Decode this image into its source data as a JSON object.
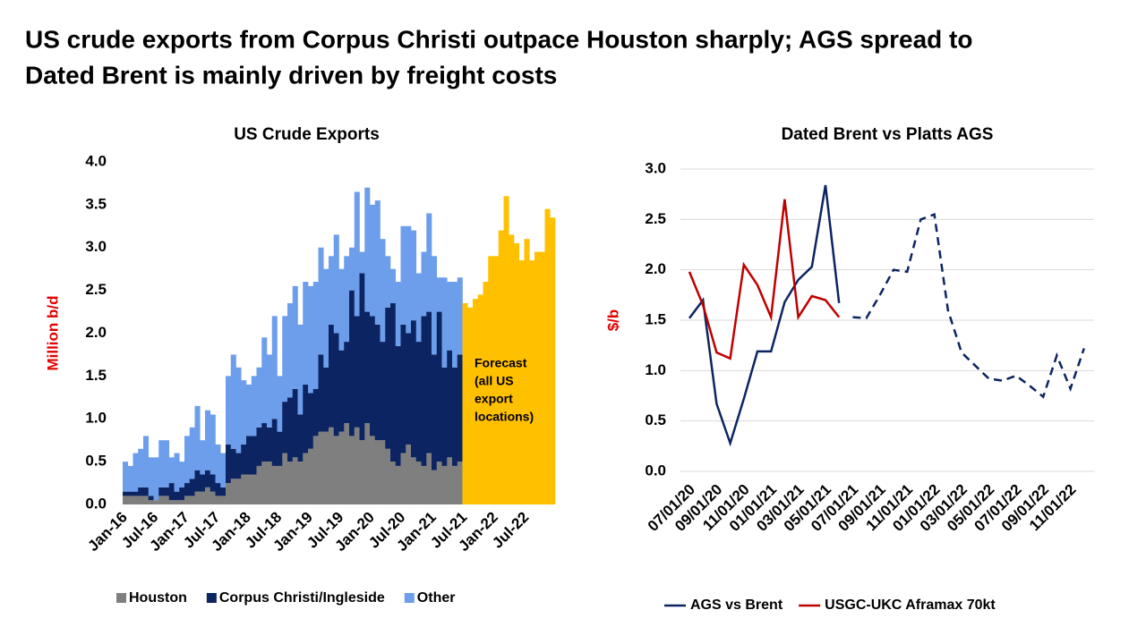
{
  "title_lines": [
    "US crude exports from Corpus Christi outpace Houston sharply; AGS spread to",
    "Dated Brent is mainly driven by freight costs"
  ],
  "chart_data": [
    {
      "type": "bar",
      "stacked": true,
      "title": "US Crude  Exports",
      "y_label": "Million b/d",
      "grid": false,
      "ylim": [
        0,
        4
      ],
      "yticks": [
        {
          "value": 0,
          "label": "0.0"
        },
        {
          "value": 0.5,
          "label": "0.5"
        },
        {
          "value": 1,
          "label": "1.0"
        },
        {
          "value": 1.5,
          "label": "1.5"
        },
        {
          "value": 2,
          "label": "2.0"
        },
        {
          "value": 2.5,
          "label": "2.5"
        },
        {
          "value": 3,
          "label": "3.0"
        },
        {
          "value": 3.5,
          "label": "3.5"
        },
        {
          "value": 4,
          "label": "4.0"
        }
      ],
      "categories": [
        "Jan-16",
        null,
        null,
        null,
        null,
        null,
        "Jul-16",
        null,
        null,
        null,
        null,
        null,
        "Jan-17",
        null,
        null,
        null,
        null,
        null,
        "Jul-17",
        null,
        null,
        null,
        null,
        null,
        "Jan-18",
        null,
        null,
        null,
        null,
        null,
        "Jul-18",
        null,
        null,
        null,
        null,
        null,
        "Jan-19",
        null,
        null,
        null,
        null,
        null,
        "Jul-19",
        null,
        null,
        null,
        null,
        null,
        "Jan-20",
        null,
        null,
        null,
        null,
        null,
        "Jul-20",
        null,
        null,
        null,
        null,
        null,
        "Jan-21",
        null,
        null,
        null,
        null,
        null,
        "Jul-21",
        null,
        null,
        null,
        null,
        null,
        "Jan-22",
        null,
        null,
        null,
        null,
        null,
        "Jul-22",
        null,
        null,
        null,
        null,
        null
      ],
      "series": [
        {
          "name": "Houston",
          "color": "#7f7f7f",
          "values": [
            0.1,
            0.1,
            0.1,
            0.1,
            0.1,
            0.05,
            0.05,
            0.1,
            0.1,
            0.05,
            0.05,
            0.05,
            0.1,
            0.1,
            0.15,
            0.15,
            0.2,
            0.15,
            0.1,
            0.1,
            0.25,
            0.3,
            0.3,
            0.35,
            0.35,
            0.35,
            0.45,
            0.5,
            0.5,
            0.45,
            0.45,
            0.6,
            0.5,
            0.55,
            0.5,
            0.6,
            0.65,
            0.8,
            0.85,
            0.85,
            0.9,
            0.8,
            0.85,
            0.95,
            0.8,
            0.9,
            0.75,
            0.95,
            0.8,
            0.75,
            0.75,
            0.65,
            0.5,
            0.45,
            0.6,
            0.7,
            0.55,
            0.5,
            0.45,
            0.6,
            0.4,
            0.5,
            0.45,
            0.55,
            0.45,
            0.5,
            null,
            null,
            null,
            null,
            null,
            null,
            null,
            null,
            null,
            null,
            null,
            null,
            null,
            null,
            null,
            null,
            null,
            null
          ]
        },
        {
          "name": "Corpus Christi/Ingleside",
          "color": "#0c2461",
          "values": [
            0.05,
            0.05,
            0.05,
            0.1,
            0.1,
            0.05,
            0,
            0.1,
            0.1,
            0.2,
            0.1,
            0.15,
            0.15,
            0.2,
            0.25,
            0.2,
            0.2,
            0.2,
            0.15,
            0.1,
            0.45,
            0.35,
            0.3,
            0.35,
            0.45,
            0.45,
            0.45,
            0.45,
            0.4,
            0.55,
            0.4,
            0.6,
            0.75,
            0.8,
            0.55,
            0.8,
            0.65,
            0.55,
            0.9,
            0.75,
            1.2,
            1.2,
            0.95,
            0.95,
            1.7,
            1.3,
            1.95,
            1.3,
            1.4,
            1.35,
            1.15,
            1.65,
            1.85,
            1.4,
            1.5,
            1.3,
            1.6,
            1.4,
            1.75,
            1.65,
            1.35,
            1.75,
            1.15,
            1.25,
            1.15,
            1.25,
            null,
            null,
            null,
            null,
            null,
            null,
            null,
            null,
            null,
            null,
            null,
            null,
            null,
            null,
            null,
            null,
            null,
            null
          ]
        },
        {
          "name": "Other",
          "color": "#6d9eeb",
          "values": [
            0.35,
            0.3,
            0.45,
            0.45,
            0.6,
            0.45,
            0.5,
            0.55,
            0.55,
            0.3,
            0.45,
            0.3,
            0.55,
            0.6,
            0.75,
            0.4,
            0.7,
            0.7,
            0.45,
            0.4,
            0.8,
            1.1,
            1.0,
            0.75,
            0.6,
            0.7,
            0.7,
            1.0,
            0.85,
            1.2,
            0.65,
            1.0,
            1.1,
            1.2,
            1.05,
            1.2,
            1.25,
            1.25,
            1.25,
            1.15,
            0.8,
            1.15,
            0.95,
            1.0,
            0.5,
            1.45,
            0.25,
            1.45,
            1.3,
            1.45,
            1.2,
            0.6,
            0.4,
            0.75,
            1.15,
            1.25,
            1.05,
            0.8,
            0.75,
            1.15,
            1.15,
            0.4,
            1.05,
            0.8,
            1.0,
            0.9,
            null,
            null,
            null,
            null,
            null,
            null,
            null,
            null,
            null,
            null,
            null,
            null,
            null,
            null,
            null,
            null,
            null,
            null
          ]
        }
      ],
      "forecast": {
        "color": "#ffc000",
        "values": [
          null,
          null,
          null,
          null,
          null,
          null,
          null,
          null,
          null,
          null,
          null,
          null,
          null,
          null,
          null,
          null,
          null,
          null,
          null,
          null,
          null,
          null,
          null,
          null,
          null,
          null,
          null,
          null,
          null,
          null,
          null,
          null,
          null,
          null,
          null,
          null,
          null,
          null,
          null,
          null,
          null,
          null,
          null,
          null,
          null,
          null,
          null,
          null,
          null,
          null,
          null,
          null,
          null,
          null,
          null,
          null,
          null,
          null,
          null,
          null,
          null,
          null,
          null,
          null,
          null,
          null,
          2.35,
          2.3,
          2.4,
          2.45,
          2.6,
          2.9,
          2.9,
          3.2,
          3.6,
          3.15,
          3.05,
          2.85,
          3.1,
          2.85,
          2.95,
          2.95,
          3.45,
          3.35
        ]
      },
      "annotation_lines": [
        "Forecast",
        "(all US",
        "export",
        "locations)"
      ]
    },
    {
      "type": "line",
      "title": "Dated Brent vs Platts AGS",
      "y_label": "$/b",
      "grid": true,
      "ylim": [
        0,
        3
      ],
      "yticks": [
        {
          "value": 0,
          "label": "0.0"
        },
        {
          "value": 0.5,
          "label": "0.5"
        },
        {
          "value": 1,
          "label": "1.0"
        },
        {
          "value": 1.5,
          "label": "1.5"
        },
        {
          "value": 2,
          "label": "2.0"
        },
        {
          "value": 2.5,
          "label": "2.5"
        },
        {
          "value": 3,
          "label": "3.0"
        }
      ],
      "categories": [
        "07/01/20",
        null,
        "09/01/20",
        null,
        "11/01/20",
        null,
        "01/01/21",
        null,
        "03/01/21",
        null,
        "05/01/21",
        null,
        "07/01/21",
        null,
        "09/01/21",
        null,
        "11/01/21",
        null,
        "01/01/22",
        null,
        "03/01/22",
        null,
        "05/01/22",
        null,
        "07/01/22",
        null,
        "09/01/22",
        null,
        "11/01/22",
        null
      ],
      "series": [
        {
          "name": "AGS vs Brent",
          "color": "#0c2461",
          "values": [
            1.52,
            1.7,
            0.67,
            0.28,
            0.72,
            1.19,
            1.19,
            1.68,
            1.9,
            2.03,
            2.84,
            1.67,
            null,
            null,
            null,
            null,
            null,
            null,
            null,
            null,
            null,
            null,
            null,
            null,
            null,
            null,
            null,
            null,
            null,
            null
          ],
          "forecast": [
            null,
            null,
            null,
            null,
            null,
            null,
            null,
            null,
            null,
            null,
            null,
            null,
            1.53,
            1.52,
            1.75,
            2.0,
            1.98,
            2.5,
            2.55,
            1.6,
            1.18,
            1.05,
            0.92,
            0.9,
            0.95,
            0.85,
            0.74,
            1.15,
            0.82,
            1.22
          ]
        },
        {
          "name": "USGC-UKC Aframax 70kt",
          "color": "#c00000",
          "values": [
            1.98,
            1.65,
            1.18,
            1.12,
            2.05,
            1.85,
            1.53,
            2.7,
            1.53,
            1.74,
            1.7,
            1.53,
            null,
            null,
            null,
            null,
            null,
            null,
            null,
            null,
            null,
            null,
            null,
            null,
            null,
            null,
            null,
            null,
            null,
            null
          ]
        }
      ]
    }
  ]
}
